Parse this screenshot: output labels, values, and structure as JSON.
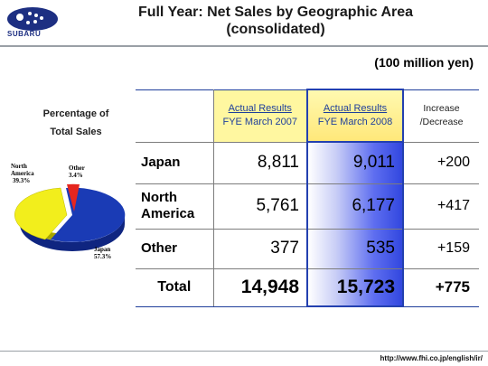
{
  "header": {
    "brand": "SUBARU",
    "title_line1": "Full Year: Net Sales by Geographic Area",
    "title_line2": "(consolidated)"
  },
  "unit": "(100 million yen)",
  "pie": {
    "title_line1": "Percentage of",
    "title_line2": "Total Sales",
    "slices": [
      {
        "label_line1": "Japan",
        "label_line2": "57.3%",
        "share": 57.3,
        "color": "#1a3bb5"
      },
      {
        "label_line1": "North",
        "label_line2": "America",
        "label_line3": "39.3%",
        "share": 39.3,
        "color": "#f2ee1c"
      },
      {
        "label_line1": "Other",
        "label_line2": "3.4%",
        "share": 3.4,
        "color": "#e5261f"
      }
    ]
  },
  "table": {
    "col2007": {
      "line1": "Actual Results",
      "line2": "FYE March 2007"
    },
    "col2008": {
      "line1": "Actual Results",
      "line2": "FYE March 2008"
    },
    "colinc": {
      "line1": "Increase",
      "line2": "/Decrease"
    },
    "rows": [
      {
        "label1": "Japan",
        "label2": "",
        "v2007": "8,811",
        "v2008": "9,011",
        "inc": "+200"
      },
      {
        "label1": "North",
        "label2": "America",
        "v2007": "5,761",
        "v2008": "6,177",
        "inc": "+417"
      },
      {
        "label1": "Other",
        "label2": "",
        "v2007": "377",
        "v2008": "535",
        "inc": "+159"
      }
    ],
    "total": {
      "label": "Total",
      "v2007": "14,948",
      "v2008": "15,723",
      "inc": "+775"
    }
  },
  "footer": {
    "url": "http://www.fhi.co.jp/english/ir/"
  },
  "colors": {
    "accent_blue": "#1f3f9b",
    "highlight_yellow": "#fff7a0"
  }
}
